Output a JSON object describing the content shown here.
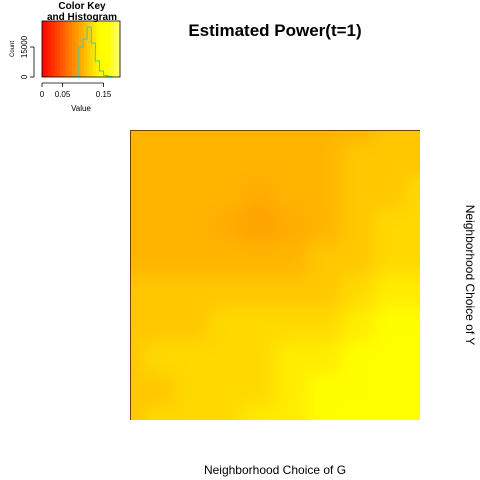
{
  "title": "Estimated Power(t=1)",
  "xlabel": "Neighborhood Choice of G",
  "ylabel": "Neighborhood Choice of Y",
  "key": {
    "title_line1": "Color Key",
    "title_line2": "and Histogram",
    "xlabel": "Value",
    "ylabel": "Count",
    "x_ticks": [
      "0",
      "0.05",
      "0.15"
    ],
    "x_tick_values": [
      0,
      0.05,
      0.15
    ],
    "y_ticks": [
      "0",
      "15000"
    ],
    "y_tick_values": [
      0,
      15000
    ],
    "colors": [
      "#ff0000",
      "#ff8c00",
      "#ffff00",
      "#ffffc8"
    ]
  },
  "chart_data": [
    {
      "type": "heatmap",
      "title": "Estimated Power(t=1)",
      "xlabel": "Neighborhood Choice of G",
      "ylabel": "Neighborhood Choice of Y",
      "value_range": [
        0,
        0.19
      ],
      "grid": [
        [
          0.1,
          0.1,
          0.1,
          0.1,
          0.1,
          0.1,
          0.1,
          0.1,
          0.11,
          0.11
        ],
        [
          0.1,
          0.1,
          0.1,
          0.1,
          0.1,
          0.1,
          0.1,
          0.11,
          0.11,
          0.11
        ],
        [
          0.1,
          0.1,
          0.1,
          0.1,
          0.095,
          0.1,
          0.1,
          0.11,
          0.11,
          0.12
        ],
        [
          0.1,
          0.1,
          0.1,
          0.095,
          0.09,
          0.095,
          0.1,
          0.11,
          0.12,
          0.12
        ],
        [
          0.1,
          0.1,
          0.1,
          0.1,
          0.1,
          0.1,
          0.11,
          0.11,
          0.12,
          0.12
        ],
        [
          0.11,
          0.11,
          0.11,
          0.11,
          0.11,
          0.11,
          0.11,
          0.12,
          0.13,
          0.13
        ],
        [
          0.11,
          0.11,
          0.11,
          0.12,
          0.12,
          0.12,
          0.12,
          0.13,
          0.14,
          0.14
        ],
        [
          0.11,
          0.12,
          0.12,
          0.12,
          0.12,
          0.13,
          0.13,
          0.14,
          0.15,
          0.15
        ],
        [
          0.11,
          0.11,
          0.12,
          0.12,
          0.12,
          0.13,
          0.14,
          0.14,
          0.15,
          0.15
        ],
        [
          0.11,
          0.12,
          0.12,
          0.12,
          0.13,
          0.13,
          0.14,
          0.15,
          0.15,
          0.14
        ]
      ]
    },
    {
      "type": "bar",
      "title": "Color Key and Histogram",
      "xlabel": "Value",
      "ylabel": "Count",
      "x": [
        0.085,
        0.095,
        0.105,
        0.115,
        0.125,
        0.135,
        0.145,
        0.155,
        0.165
      ],
      "values": [
        500,
        15000,
        19000,
        25000,
        17000,
        8000,
        3000,
        800,
        200
      ],
      "xlim": [
        0,
        0.19
      ],
      "ylim": [
        0,
        28000
      ]
    }
  ]
}
